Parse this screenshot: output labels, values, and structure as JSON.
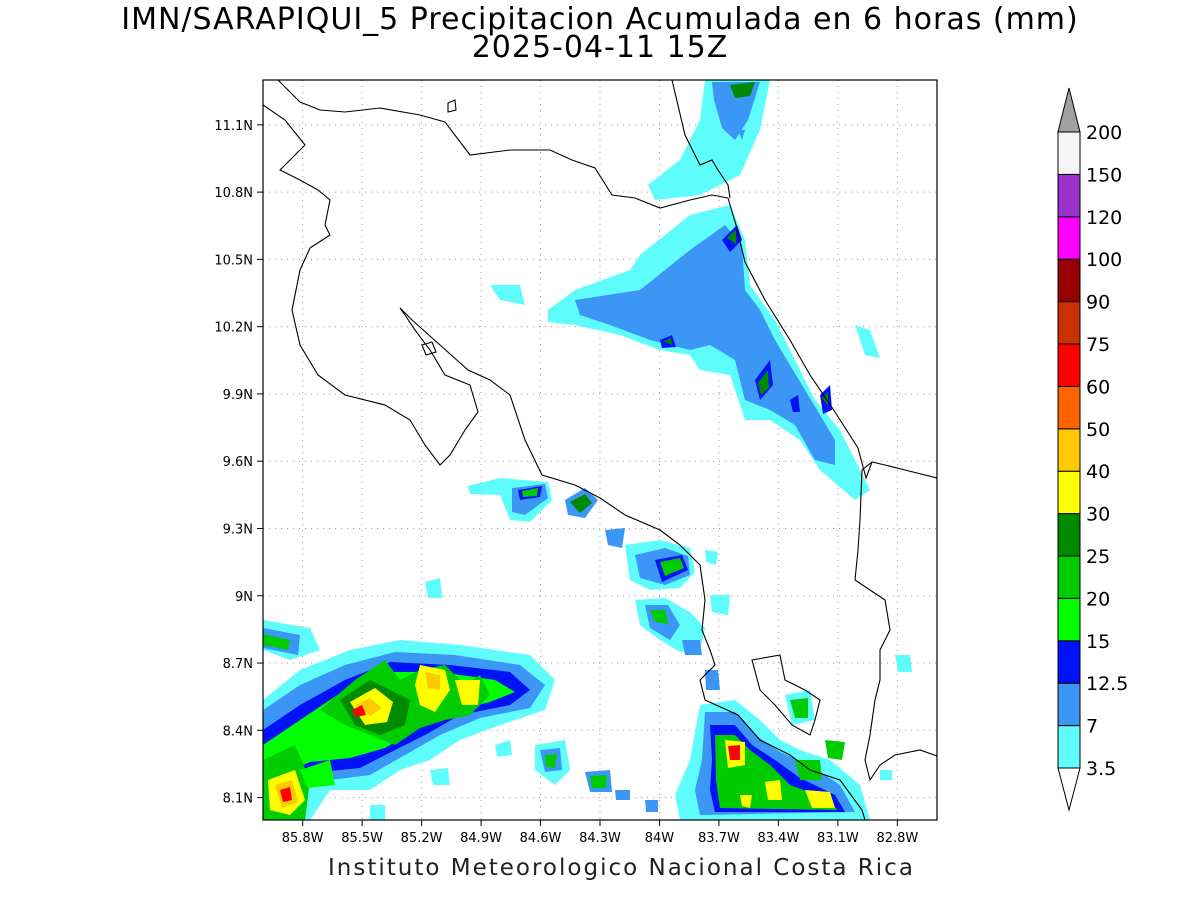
{
  "title_line1": "IMN/SARAPIQUI_5 Precipitacion Acumulada en 6 horas (mm)",
  "title_line2": "2025-04-11 15Z",
  "footer": "Instituto Meteorologico Nacional Costa Rica",
  "map": {
    "lon_range": [
      -86.0,
      -82.6
    ],
    "lat_range": [
      8.0,
      11.3
    ],
    "lon_ticks": [
      {
        "v": -85.8,
        "label": "85.8W"
      },
      {
        "v": -85.5,
        "label": "85.5W"
      },
      {
        "v": -85.2,
        "label": "85.2W"
      },
      {
        "v": -84.9,
        "label": "84.9W"
      },
      {
        "v": -84.6,
        "label": "84.6W"
      },
      {
        "v": -84.3,
        "label": "84.3W"
      },
      {
        "v": -84.0,
        "label": "84W"
      },
      {
        "v": -83.7,
        "label": "83.7W"
      },
      {
        "v": -83.4,
        "label": "83.4W"
      },
      {
        "v": -83.1,
        "label": "83.1W"
      },
      {
        "v": -82.8,
        "label": "82.8W"
      }
    ],
    "lat_ticks": [
      {
        "v": 8.1,
        "label": "8.1N"
      },
      {
        "v": 8.4,
        "label": "8.4N"
      },
      {
        "v": 8.7,
        "label": "8.7N"
      },
      {
        "v": 9.0,
        "label": "9N"
      },
      {
        "v": 9.3,
        "label": "9.3N"
      },
      {
        "v": 9.6,
        "label": "9.6N"
      },
      {
        "v": 9.9,
        "label": "9.9N"
      },
      {
        "v": 10.2,
        "label": "10.2N"
      },
      {
        "v": 10.5,
        "label": "10.5N"
      },
      {
        "v": 10.8,
        "label": "10.8N"
      },
      {
        "v": 11.1,
        "label": "11.1N"
      }
    ],
    "grid": true
  },
  "colorbar": {
    "levels": [
      {
        "label": "3.5",
        "color": "#5ffcfc"
      },
      {
        "label": "7",
        "color": "#3c96f5"
      },
      {
        "label": "12.5",
        "color": "#0012f7"
      },
      {
        "label": "15",
        "color": "#00ff00"
      },
      {
        "label": "20",
        "color": "#00cc00"
      },
      {
        "label": "25",
        "color": "#008a00"
      },
      {
        "label": "30",
        "color": "#ffff00"
      },
      {
        "label": "40",
        "color": "#ffc800"
      },
      {
        "label": "50",
        "color": "#ff6400"
      },
      {
        "label": "60",
        "color": "#ff0000"
      },
      {
        "label": "75",
        "color": "#c83200"
      },
      {
        "label": "90",
        "color": "#960000"
      },
      {
        "label": "100",
        "color": "#ff00ff"
      },
      {
        "label": "120",
        "color": "#9a32cd"
      },
      {
        "label": "150",
        "color": "#f5f5f5"
      },
      {
        "label": "200",
        "color": "#a0a0a0"
      }
    ]
  }
}
